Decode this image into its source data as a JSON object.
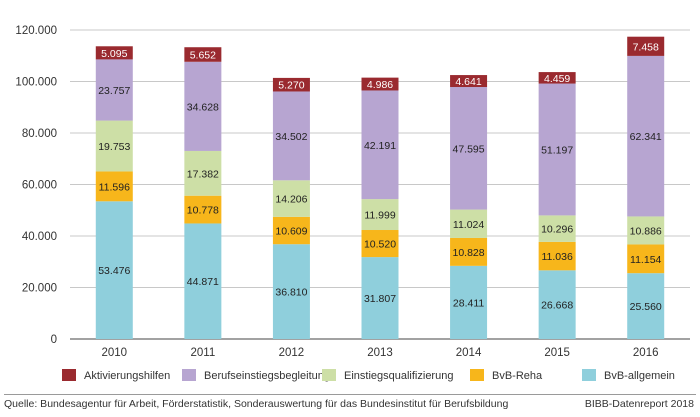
{
  "chart_data": {
    "type": "bar",
    "stacked": true,
    "categories": [
      "2010",
      "2011",
      "2012",
      "2013",
      "2014",
      "2015",
      "2016"
    ],
    "ylim": [
      0,
      120000
    ],
    "yticks": [
      0,
      20000,
      40000,
      60000,
      80000,
      100000,
      120000
    ],
    "ytick_labels": [
      "0",
      "20.000",
      "40.000",
      "60.000",
      "80.000",
      "100.000",
      "120.000"
    ],
    "grid": true,
    "legend_position": "bottom",
    "series": [
      {
        "name": "BvB-allgemein",
        "color": "#8fcfdc",
        "values": [
          53476,
          44871,
          36810,
          31807,
          28411,
          26668,
          25560
        ],
        "labels": [
          "53.476",
          "44.871",
          "36.810",
          "31.807",
          "28.411",
          "26.668",
          "25.560"
        ]
      },
      {
        "name": "BvB-Reha",
        "color": "#f7b61b",
        "values": [
          11596,
          10778,
          10609,
          10520,
          10828,
          11036,
          11154
        ],
        "labels": [
          "11.596",
          "10.778",
          "10.609",
          "10.520",
          "10.828",
          "11.036",
          "11.154"
        ]
      },
      {
        "name": "Einstiegsqualifizierung",
        "color": "#cddfa6",
        "values": [
          19753,
          17382,
          14206,
          11999,
          11024,
          10296,
          10886
        ],
        "labels": [
          "19.753",
          "17.382",
          "14.206",
          "11.999",
          "11.024",
          "10.296",
          "10.886"
        ]
      },
      {
        "name": "Berufseinstiegsbegleitung",
        "color": "#b7a5d1",
        "values": [
          23757,
          34628,
          34502,
          42191,
          47595,
          51197,
          62341
        ],
        "labels": [
          "23.757",
          "34.628",
          "34.502",
          "42.191",
          "47.595",
          "51.197",
          "62.341"
        ]
      },
      {
        "name": "Aktivierungshilfen",
        "color": "#9a2a2f",
        "values": [
          5095,
          5652,
          5270,
          4986,
          4641,
          4459,
          7458
        ],
        "labels": [
          "5.095",
          "5.652",
          "5.270",
          "4.986",
          "4.641",
          "4.459",
          "7.458"
        ]
      }
    ],
    "legend_order": [
      "Aktivierungshilfen",
      "Berufseinstiegsbegleitung",
      "Einstiegsqualifizierung",
      "BvB-Reha",
      "BvB-allgemein"
    ]
  },
  "footer": {
    "source": "Quelle: Bundesagentur für Arbeit, Förderstatistik, Sonderauswertung für das Bundesinstitut für Berufsbildung",
    "credit": "BIBB-Datenreport 2018"
  }
}
